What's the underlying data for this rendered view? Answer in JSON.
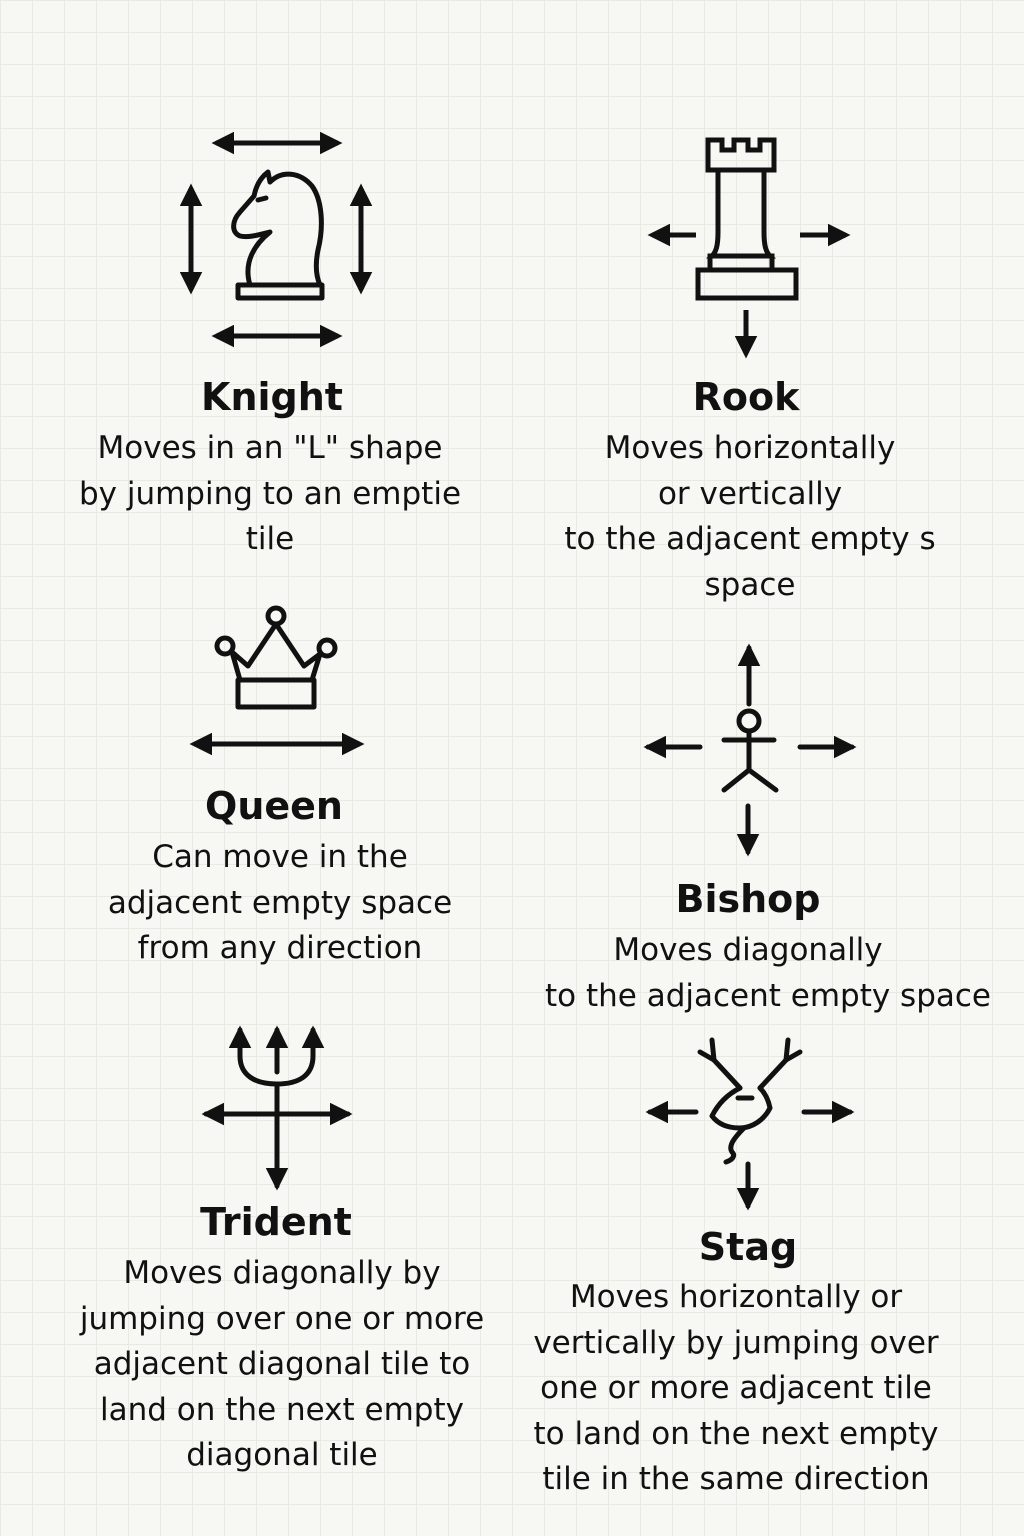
{
  "pieces": {
    "knight": {
      "icon": "knight-icon",
      "name": "Knight",
      "lines": [
        "Moves in an \"L\" shape",
        "by jumping to an emptie",
        "tile"
      ]
    },
    "rook": {
      "icon": "rook-icon",
      "name": "Rook",
      "lines": [
        "Moves horizontally",
        "or vertically",
        "to the adjacent empty s",
        "space"
      ]
    },
    "queen": {
      "icon": "crown-icon",
      "name": "Queen",
      "lines": [
        "Can move in the",
        "adjacent empty space",
        "from any direction"
      ]
    },
    "bishop": {
      "icon": "stick-figure-icon",
      "name": "Bishop",
      "lines": [
        "Moves diagonally",
        "to the adjacent empty space"
      ]
    },
    "trident": {
      "icon": "trident-icon",
      "name": "Trident",
      "lines": [
        "Moves diagonally by",
        "jumping over one or more",
        "adjacent diagonal tile to",
        "land on the next empty",
        "diagonal tile"
      ]
    },
    "stag": {
      "icon": "stag-icon",
      "name": "Stag",
      "lines": [
        "Moves horizontally or",
        "vertically by jumping over",
        "one or more adjacent tile",
        "to land on the next empty",
        "tile in the same direction"
      ]
    }
  },
  "colors": {
    "ink": "#111111",
    "background": "#f7f7f3",
    "grid": "#e9e9e4"
  }
}
